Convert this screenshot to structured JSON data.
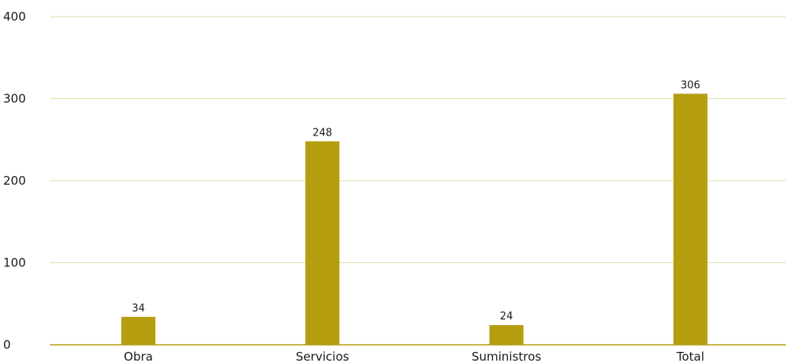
{
  "chart_data": {
    "type": "bar",
    "categories": [
      "Obra",
      "Servicios",
      "Suministros",
      "Total"
    ],
    "values": [
      34,
      248,
      24,
      306
    ],
    "ylim": [
      0,
      400
    ],
    "yticks": [
      0,
      100,
      200,
      300,
      400
    ],
    "grid": true,
    "legend": "none",
    "colors": {
      "bar": "#b59d10",
      "grid": "#e6dcaa",
      "axis": "#b59d10"
    }
  }
}
